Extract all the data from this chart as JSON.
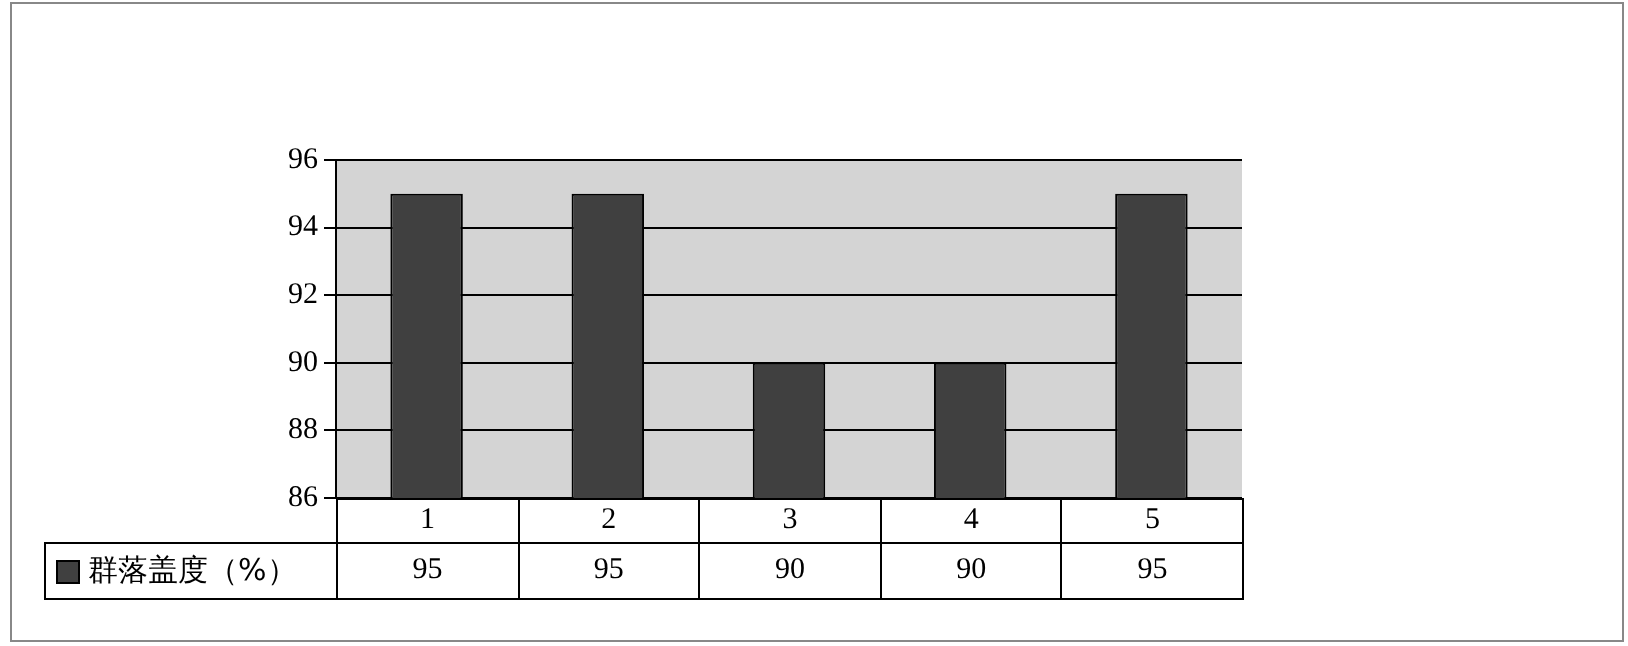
{
  "chart_data": {
    "type": "bar",
    "categories": [
      "1",
      "2",
      "3",
      "4",
      "5"
    ],
    "series": [
      {
        "name": "群落盖度（%）",
        "color": "#404040",
        "values": [
          95,
          95,
          90,
          90,
          95
        ]
      }
    ],
    "ylim": [
      86,
      96
    ],
    "yticks": [
      86,
      88,
      90,
      92,
      94,
      96
    ],
    "grid": "y",
    "legend": "bottom left",
    "data_labels": true
  }
}
